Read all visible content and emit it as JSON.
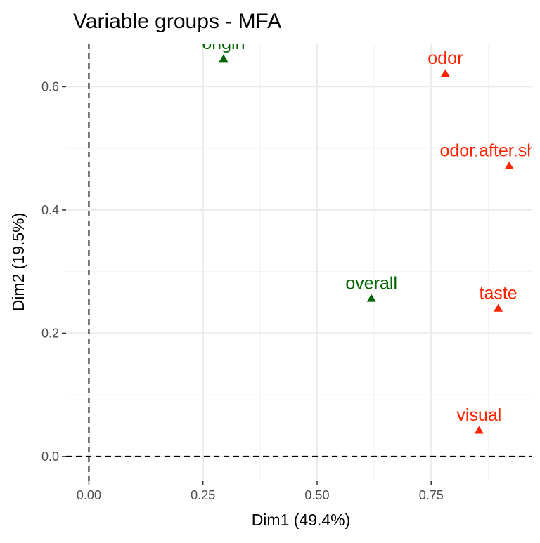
{
  "chart_data": {
    "type": "scatter",
    "title": "Variable groups - MFA",
    "xlabel": "Dim1 (49.4%)",
    "ylabel": "Dim2 (19.5%)",
    "xlim": [
      -0.05,
      0.97
    ],
    "ylim": [
      -0.04,
      0.67
    ],
    "x_ticks": [
      0,
      0.25,
      0.5,
      0.75
    ],
    "x_tick_labels": [
      "0.00",
      "0.25",
      "0.50",
      "0.75"
    ],
    "y_ticks": [
      0,
      0.2,
      0.4,
      0.6
    ],
    "y_tick_labels": [
      "0.0",
      "0.2",
      "0.4",
      "0.6"
    ],
    "grid": true,
    "reference_lines": {
      "x": 0,
      "y": 0,
      "style": "dashed"
    },
    "colors": {
      "active": "#ff2200",
      "supplementary": "#006400"
    },
    "points": [
      {
        "label": "origin",
        "x": 0.295,
        "y": 0.645,
        "group": "supplementary"
      },
      {
        "label": "odor",
        "x": 0.781,
        "y": 0.621,
        "group": "active"
      },
      {
        "label": "odor.after.shaking",
        "x": 0.921,
        "y": 0.471,
        "group": "active"
      },
      {
        "label": "overall",
        "x": 0.619,
        "y": 0.256,
        "group": "supplementary"
      },
      {
        "label": "taste",
        "x": 0.897,
        "y": 0.24,
        "group": "active"
      },
      {
        "label": "visual",
        "x": 0.855,
        "y": 0.042,
        "group": "active"
      }
    ]
  }
}
